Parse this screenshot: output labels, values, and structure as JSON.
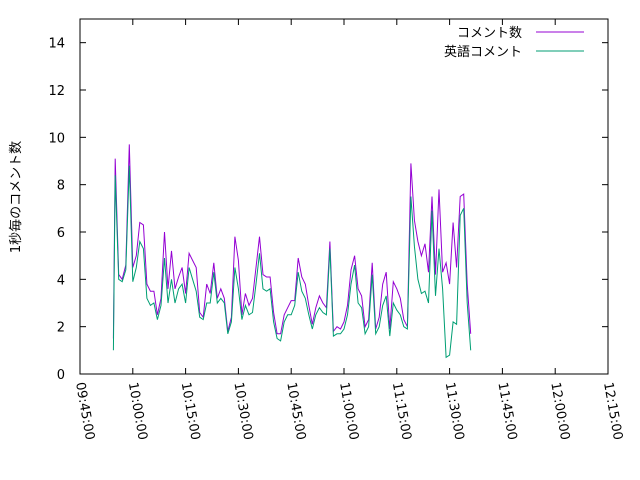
{
  "chart_data": {
    "type": "line",
    "title": "",
    "xlabel": "",
    "ylabel": "1秒毎のコメント数",
    "xlim": [
      "09:45:00",
      "12:15:00"
    ],
    "ylim": [
      0,
      15
    ],
    "grid": false,
    "legend_position": "top-right",
    "x_ticks": [
      "09:45:00",
      "10:00:00",
      "10:15:00",
      "10:30:00",
      "10:45:00",
      "11:00:00",
      "11:15:00",
      "11:30:00",
      "11:45:00",
      "12:00:00",
      "12:15:00"
    ],
    "y_ticks": [
      "0",
      "2",
      "4",
      "6",
      "8",
      "10",
      "12",
      "14"
    ],
    "series": [
      {
        "name": "コメント数",
        "color": "#9400d3",
        "points": [
          [
            "09:54:30",
            1.5
          ],
          [
            "09:55:00",
            9.1
          ],
          [
            "09:56:00",
            4.2
          ],
          [
            "09:57:00",
            4.0
          ],
          [
            "09:58:00",
            4.6
          ],
          [
            "09:59:00",
            9.7
          ],
          [
            "10:00:00",
            4.5
          ],
          [
            "10:01:00",
            5.0
          ],
          [
            "10:02:00",
            6.4
          ],
          [
            "10:03:00",
            6.3
          ],
          [
            "10:04:00",
            3.8
          ],
          [
            "10:05:00",
            3.5
          ],
          [
            "10:06:00",
            3.5
          ],
          [
            "10:07:00",
            2.5
          ],
          [
            "10:08:00",
            3.2
          ],
          [
            "10:09:00",
            6.0
          ],
          [
            "10:10:00",
            3.6
          ],
          [
            "10:11:00",
            5.2
          ],
          [
            "10:12:00",
            3.6
          ],
          [
            "10:13:00",
            4.1
          ],
          [
            "10:14:00",
            4.5
          ],
          [
            "10:15:00",
            3.4
          ],
          [
            "10:16:00",
            5.1
          ],
          [
            "10:17:00",
            4.8
          ],
          [
            "10:18:00",
            4.5
          ],
          [
            "10:19:00",
            2.6
          ],
          [
            "10:20:00",
            2.4
          ],
          [
            "10:21:00",
            3.8
          ],
          [
            "10:22:00",
            3.4
          ],
          [
            "10:23:00",
            4.7
          ],
          [
            "10:24:00",
            3.2
          ],
          [
            "10:25:00",
            3.6
          ],
          [
            "10:26:00",
            3.2
          ],
          [
            "10:27:00",
            1.8
          ],
          [
            "10:28:00",
            2.4
          ],
          [
            "10:29:00",
            5.8
          ],
          [
            "10:30:00",
            4.8
          ],
          [
            "10:31:00",
            2.5
          ],
          [
            "10:32:00",
            3.4
          ],
          [
            "10:33:00",
            2.9
          ],
          [
            "10:34:00",
            3.2
          ],
          [
            "10:35:00",
            4.5
          ],
          [
            "10:36:00",
            5.8
          ],
          [
            "10:37:00",
            4.2
          ],
          [
            "10:38:00",
            4.1
          ],
          [
            "10:39:00",
            4.1
          ],
          [
            "10:40:00",
            2.6
          ],
          [
            "10:41:00",
            1.7
          ],
          [
            "10:42:00",
            1.7
          ],
          [
            "10:43:00",
            2.5
          ],
          [
            "10:44:00",
            2.8
          ],
          [
            "10:45:00",
            3.1
          ],
          [
            "10:46:00",
            3.1
          ],
          [
            "10:47:00",
            4.9
          ],
          [
            "10:48:00",
            4.1
          ],
          [
            "10:49:00",
            3.8
          ],
          [
            "10:50:00",
            2.9
          ],
          [
            "10:51:00",
            2.1
          ],
          [
            "10:52:00",
            2.8
          ],
          [
            "10:53:00",
            3.3
          ],
          [
            "10:54:00",
            3.0
          ],
          [
            "10:55:00",
            2.8
          ],
          [
            "10:56:00",
            5.6
          ],
          [
            "10:57:00",
            1.8
          ],
          [
            "10:58:00",
            2.0
          ],
          [
            "10:59:00",
            1.9
          ],
          [
            "11:00:00",
            2.2
          ],
          [
            "11:01:00",
            2.9
          ],
          [
            "11:02:00",
            4.4
          ],
          [
            "11:03:00",
            5.0
          ],
          [
            "11:04:00",
            3.6
          ],
          [
            "11:05:00",
            3.3
          ],
          [
            "11:06:00",
            2.0
          ],
          [
            "11:07:00",
            2.3
          ],
          [
            "11:08:00",
            4.7
          ],
          [
            "11:09:00",
            1.9
          ],
          [
            "11:10:00",
            2.4
          ],
          [
            "11:11:00",
            3.8
          ],
          [
            "11:12:00",
            4.3
          ],
          [
            "11:13:00",
            1.9
          ],
          [
            "11:14:00",
            3.9
          ],
          [
            "11:15:00",
            3.6
          ],
          [
            "11:16:00",
            3.2
          ],
          [
            "11:17:00",
            2.3
          ],
          [
            "11:18:00",
            2.0
          ],
          [
            "11:19:00",
            8.9
          ],
          [
            "11:20:00",
            6.5
          ],
          [
            "11:21:00",
            5.6
          ],
          [
            "11:22:00",
            5.0
          ],
          [
            "11:23:00",
            5.5
          ],
          [
            "11:24:00",
            4.3
          ],
          [
            "11:25:00",
            7.5
          ],
          [
            "11:26:00",
            4.2
          ],
          [
            "11:27:00",
            7.8
          ],
          [
            "11:28:00",
            4.3
          ],
          [
            "11:29:00",
            4.7
          ],
          [
            "11:30:00",
            3.8
          ],
          [
            "11:31:00",
            6.4
          ],
          [
            "11:32:00",
            4.5
          ],
          [
            "11:33:00",
            7.5
          ],
          [
            "11:34:00",
            7.6
          ],
          [
            "11:35:00",
            3.8
          ],
          [
            "11:36:00",
            1.7
          ]
        ]
      },
      {
        "name": "英語コメント",
        "color": "#009e73",
        "points": [
          [
            "09:54:30",
            1.0
          ],
          [
            "09:55:00",
            8.4
          ],
          [
            "09:56:00",
            4.0
          ],
          [
            "09:57:00",
            3.9
          ],
          [
            "09:58:00",
            4.4
          ],
          [
            "09:59:00",
            8.8
          ],
          [
            "10:00:00",
            3.9
          ],
          [
            "10:01:00",
            4.5
          ],
          [
            "10:02:00",
            5.6
          ],
          [
            "10:03:00",
            5.3
          ],
          [
            "10:04:00",
            3.2
          ],
          [
            "10:05:00",
            2.9
          ],
          [
            "10:06:00",
            3.0
          ],
          [
            "10:07:00",
            2.3
          ],
          [
            "10:08:00",
            2.9
          ],
          [
            "10:09:00",
            4.9
          ],
          [
            "10:10:00",
            3.0
          ],
          [
            "10:11:00",
            4.0
          ],
          [
            "10:12:00",
            3.0
          ],
          [
            "10:13:00",
            3.6
          ],
          [
            "10:14:00",
            3.8
          ],
          [
            "10:15:00",
            3.0
          ],
          [
            "10:16:00",
            4.5
          ],
          [
            "10:17:00",
            4.0
          ],
          [
            "10:18:00",
            3.5
          ],
          [
            "10:19:00",
            2.4
          ],
          [
            "10:20:00",
            2.3
          ],
          [
            "10:21:00",
            3.0
          ],
          [
            "10:22:00",
            3.0
          ],
          [
            "10:23:00",
            4.3
          ],
          [
            "10:24:00",
            3.0
          ],
          [
            "10:25:00",
            3.2
          ],
          [
            "10:26:00",
            3.0
          ],
          [
            "10:27:00",
            1.7
          ],
          [
            "10:28:00",
            2.2
          ],
          [
            "10:29:00",
            4.5
          ],
          [
            "10:30:00",
            3.6
          ],
          [
            "10:31:00",
            2.3
          ],
          [
            "10:32:00",
            2.9
          ],
          [
            "10:33:00",
            2.5
          ],
          [
            "10:34:00",
            2.6
          ],
          [
            "10:35:00",
            3.8
          ],
          [
            "10:36:00",
            5.1
          ],
          [
            "10:37:00",
            3.6
          ],
          [
            "10:38:00",
            3.5
          ],
          [
            "10:39:00",
            3.6
          ],
          [
            "10:40:00",
            2.2
          ],
          [
            "10:41:00",
            1.5
          ],
          [
            "10:42:00",
            1.4
          ],
          [
            "10:43:00",
            2.2
          ],
          [
            "10:44:00",
            2.5
          ],
          [
            "10:45:00",
            2.5
          ],
          [
            "10:46:00",
            2.9
          ],
          [
            "10:47:00",
            4.3
          ],
          [
            "10:48:00",
            3.5
          ],
          [
            "10:49:00",
            3.2
          ],
          [
            "10:50:00",
            2.5
          ],
          [
            "10:51:00",
            1.9
          ],
          [
            "10:52:00",
            2.5
          ],
          [
            "10:53:00",
            2.8
          ],
          [
            "10:54:00",
            2.6
          ],
          [
            "10:55:00",
            2.5
          ],
          [
            "10:56:00",
            5.3
          ],
          [
            "10:57:00",
            1.6
          ],
          [
            "10:58:00",
            1.7
          ],
          [
            "10:59:00",
            1.7
          ],
          [
            "11:00:00",
            1.9
          ],
          [
            "11:01:00",
            2.5
          ],
          [
            "11:02:00",
            3.8
          ],
          [
            "11:03:00",
            4.6
          ],
          [
            "11:04:00",
            3.0
          ],
          [
            "11:05:00",
            2.8
          ],
          [
            "11:06:00",
            1.7
          ],
          [
            "11:07:00",
            2.0
          ],
          [
            "11:08:00",
            4.2
          ],
          [
            "11:09:00",
            1.7
          ],
          [
            "11:10:00",
            2.0
          ],
          [
            "11:11:00",
            2.9
          ],
          [
            "11:12:00",
            3.3
          ],
          [
            "11:13:00",
            1.6
          ],
          [
            "11:14:00",
            3.0
          ],
          [
            "11:15:00",
            2.7
          ],
          [
            "11:16:00",
            2.5
          ],
          [
            "11:17:00",
            2.0
          ],
          [
            "11:18:00",
            1.9
          ],
          [
            "11:19:00",
            7.5
          ],
          [
            "11:20:00",
            5.4
          ],
          [
            "11:21:00",
            4.0
          ],
          [
            "11:22:00",
            3.4
          ],
          [
            "11:23:00",
            3.5
          ],
          [
            "11:24:00",
            3.0
          ],
          [
            "11:25:00",
            6.9
          ],
          [
            "11:26:00",
            3.3
          ],
          [
            "11:27:00",
            5.3
          ],
          [
            "11:28:00",
            3.6
          ],
          [
            "11:29:00",
            0.7
          ],
          [
            "11:30:00",
            0.8
          ],
          [
            "11:31:00",
            2.2
          ],
          [
            "11:32:00",
            2.1
          ],
          [
            "11:33:00",
            6.7
          ],
          [
            "11:34:00",
            7.0
          ],
          [
            "11:35:00",
            3.0
          ],
          [
            "11:36:00",
            1.0
          ]
        ]
      }
    ]
  }
}
